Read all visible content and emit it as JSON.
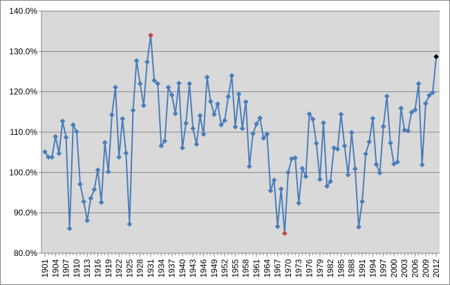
{
  "chart_data": {
    "type": "line",
    "title": "",
    "xlabel": "",
    "ylabel": "",
    "ylim": [
      80,
      140
    ],
    "y_ticks": [
      80,
      90,
      100,
      110,
      120,
      130,
      140
    ],
    "y_tick_labels": [
      "80.0%",
      "90.0%",
      "100.0%",
      "110.0%",
      "120.0%",
      "130.0%",
      "140.0%"
    ],
    "x_tick_labels": [
      "1901",
      "1904",
      "1907",
      "1910",
      "1913",
      "1916",
      "1919",
      "1922",
      "1925",
      "1928",
      "1931",
      "1934",
      "1937",
      "1940",
      "1943",
      "1946",
      "1949",
      "1952",
      "1955",
      "1958",
      "1961",
      "1964",
      "1967",
      "1970",
      "1973",
      "1976",
      "1979",
      "1982",
      "1985",
      "1988",
      "1991",
      "1994",
      "1997",
      "2000",
      "2003",
      "2006",
      "2009",
      "2012"
    ],
    "grid": "horizontal",
    "legend": "none",
    "colors": {
      "plot_background": "#d9d9d9",
      "line": "#4a7ebb",
      "marker": "#4a7ebb",
      "max_marker": "#be4b48",
      "min_marker": "#be4b48",
      "last_marker": "#000000",
      "gridline": "#868686"
    },
    "x": [
      1901,
      1902,
      1903,
      1904,
      1905,
      1906,
      1907,
      1908,
      1909,
      1910,
      1911,
      1912,
      1913,
      1914,
      1915,
      1916,
      1917,
      1918,
      1919,
      1920,
      1921,
      1922,
      1923,
      1924,
      1925,
      1926,
      1927,
      1928,
      1929,
      1930,
      1931,
      1932,
      1933,
      1934,
      1935,
      1936,
      1937,
      1938,
      1939,
      1940,
      1941,
      1942,
      1943,
      1944,
      1945,
      1946,
      1947,
      1948,
      1949,
      1950,
      1951,
      1952,
      1953,
      1954,
      1955,
      1956,
      1957,
      1958,
      1959,
      1960,
      1961,
      1962,
      1963,
      1964,
      1965,
      1966,
      1967,
      1968,
      1969,
      1970,
      1971,
      1972,
      1973,
      1974,
      1975,
      1976,
      1977,
      1978,
      1979,
      1980,
      1981,
      1982,
      1983,
      1984,
      1985,
      1986,
      1987,
      1988,
      1989,
      1990,
      1991,
      1992,
      1993,
      1994,
      1995,
      1996,
      1997,
      1998,
      1999,
      2000,
      2001,
      2002,
      2003,
      2004,
      2005,
      2006,
      2007,
      2008,
      2009,
      2010,
      2011,
      2012
    ],
    "series": [
      {
        "values": [
          105.1,
          103.8,
          103.8,
          108.9,
          104.7,
          112.7,
          108.7,
          86.1,
          111.8,
          110.1,
          97.1,
          92.8,
          88.1,
          93.6,
          95.8,
          100.6,
          92.6,
          107.4,
          100.2,
          114.3,
          121.1,
          103.8,
          113.3,
          104.8,
          87.2,
          115.4,
          127.7,
          122.0,
          116.6,
          127.4,
          134.0,
          122.8,
          122.0,
          106.6,
          107.8,
          121.1,
          119.2,
          114.6,
          122.1,
          106.1,
          112.2,
          122.0,
          110.9,
          107.0,
          114.1,
          109.5,
          123.6,
          117.6,
          114.4,
          117.0,
          111.8,
          112.9,
          118.8,
          124.0,
          111.3,
          119.4,
          110.9,
          117.5,
          101.5,
          109.6,
          112.0,
          113.5,
          108.5,
          109.5,
          95.5,
          98.1,
          86.6,
          95.9,
          84.9,
          100.0,
          103.4,
          103.6,
          92.4,
          101.0,
          99.0,
          114.5,
          113.2,
          107.2,
          98.3,
          112.3,
          96.6,
          97.8,
          106.1,
          105.8,
          114.4,
          106.6,
          99.4,
          109.9,
          100.9,
          86.5,
          92.8,
          104.6,
          107.6,
          113.4,
          102.0,
          99.9,
          111.4,
          118.9,
          107.3,
          102.1,
          102.6,
          115.9,
          110.5,
          110.3,
          114.9,
          115.5,
          122.0,
          101.9,
          117.1,
          119.1,
          119.8,
          128.7
        ],
        "highlights": {
          "max_index": 30,
          "min_index": 68,
          "last_index": 111
        }
      }
    ]
  }
}
